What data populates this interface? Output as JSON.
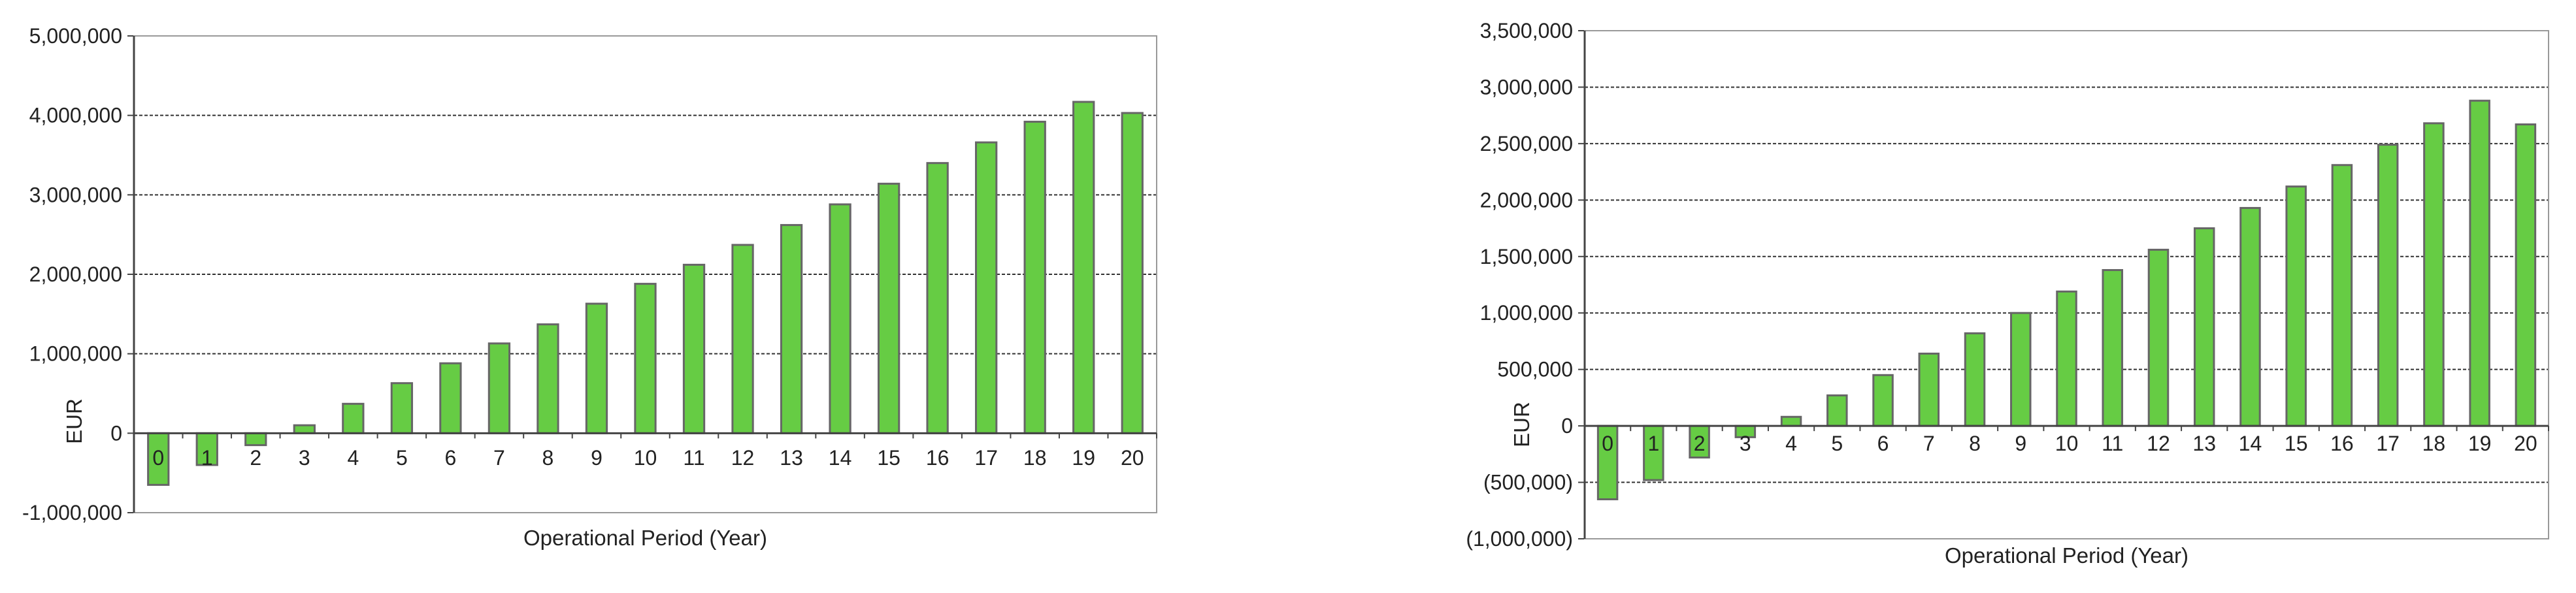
{
  "colors": {
    "bar_fill": "#66cc44",
    "bar_stroke": "#666666",
    "axis": "#444444",
    "grid": "#333333",
    "text": "#222222"
  },
  "chart_data": [
    {
      "type": "bar",
      "xlabel": "Operational Period (Year)",
      "ylabel": "EUR",
      "grid": "dashed horizontal",
      "ylim": [
        -1000000,
        5000000
      ],
      "yticks": [
        -1000000,
        0,
        1000000,
        2000000,
        3000000,
        4000000,
        5000000
      ],
      "ytick_labels": [
        "-1,000,000",
        "0",
        "1,000,000",
        "2,000,000",
        "3,000,000",
        "4,000,000",
        "5,000,000"
      ],
      "categories": [
        "0",
        "1",
        "2",
        "3",
        "4",
        "5",
        "6",
        "7",
        "8",
        "9",
        "10",
        "11",
        "12",
        "13",
        "14",
        "15",
        "16",
        "17",
        "18",
        "19",
        "20"
      ],
      "values": [
        -650000,
        -400000,
        -150000,
        100000,
        370000,
        630000,
        880000,
        1130000,
        1370000,
        1630000,
        1880000,
        2120000,
        2370000,
        2620000,
        2880000,
        3140000,
        3400000,
        3660000,
        3920000,
        4170000,
        4030000
      ]
    },
    {
      "type": "bar",
      "xlabel": "Operational Period (Year)",
      "ylabel": "EUR",
      "grid": "dashed horizontal",
      "ylim": [
        -1000000,
        3500000
      ],
      "yticks": [
        -1000000,
        -500000,
        0,
        500000,
        1000000,
        1500000,
        2000000,
        2500000,
        3000000,
        3500000
      ],
      "ytick_labels": [
        "(1,000,000)",
        "(500,000)",
        "0",
        "500,000",
        "1,000,000",
        "1,500,000",
        "2,000,000",
        "2,500,000",
        "3,000,000",
        "3,500,000"
      ],
      "categories": [
        "0",
        "1",
        "2",
        "3",
        "4",
        "5",
        "6",
        "7",
        "8",
        "9",
        "10",
        "11",
        "12",
        "13",
        "14",
        "15",
        "16",
        "17",
        "18",
        "19",
        "20"
      ],
      "values": [
        -650000,
        -480000,
        -280000,
        -100000,
        80000,
        270000,
        450000,
        640000,
        820000,
        1000000,
        1190000,
        1380000,
        1560000,
        1750000,
        1930000,
        2120000,
        2310000,
        2490000,
        2680000,
        2880000,
        2670000
      ]
    }
  ]
}
